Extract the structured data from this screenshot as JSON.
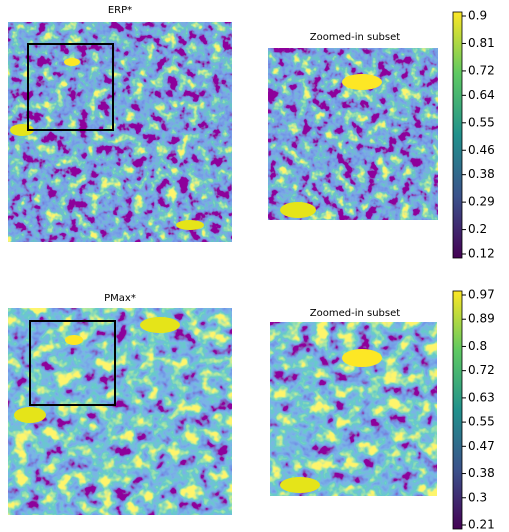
{
  "chart_data": [
    {
      "type": "heatmap",
      "title": "ERP*",
      "zoom_title": "Zoomed-in subset",
      "colormap": "viridis",
      "colorbar": {
        "ylim": [
          0.12,
          0.9
        ],
        "yticks": [
          0.9,
          0.81,
          0.72,
          0.64,
          0.55,
          0.46,
          0.38,
          0.29,
          0.2,
          0.12
        ]
      }
    },
    {
      "type": "heatmap",
      "title": "PMax*",
      "zoom_title": "Zoomed-in subset",
      "colormap": "viridis",
      "colorbar": {
        "ylim": [
          0.21,
          0.97
        ],
        "yticks": [
          0.97,
          0.89,
          0.8,
          0.72,
          0.63,
          0.55,
          0.47,
          0.38,
          0.3,
          0.21
        ]
      }
    }
  ]
}
